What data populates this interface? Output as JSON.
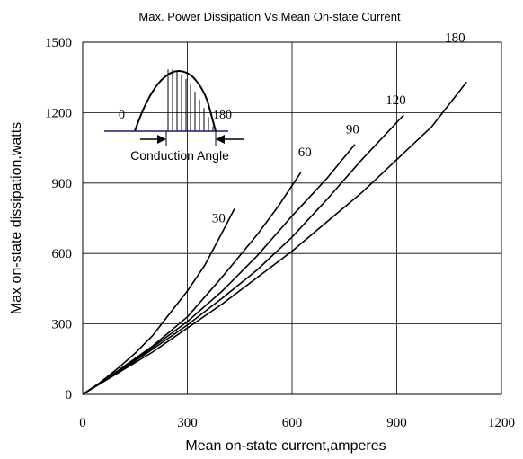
{
  "chart_data": {
    "type": "line",
    "title": "Max. Power Dissipation Vs.Mean On-state Current",
    "xlabel": "Mean on-state current,amperes",
    "ylabel": "Max on-state dissipation,watts",
    "xlim": [
      0,
      1200
    ],
    "ylim": [
      0,
      1500
    ],
    "xticks": [
      0,
      300,
      600,
      900,
      1200
    ],
    "yticks": [
      0,
      300,
      600,
      900,
      1200,
      1500
    ],
    "xtick_labels": [
      "0",
      "300",
      "600",
      "900",
      "1200"
    ],
    "ytick_labels": [
      "0",
      "300",
      "600",
      "900",
      "1200",
      "1500"
    ],
    "grid": true,
    "series": [
      {
        "name": "30",
        "x": [
          0,
          50,
          100,
          150,
          200,
          250,
          300,
          350,
          400,
          435
        ],
        "y": [
          0,
          50,
          110,
          175,
          250,
          345,
          440,
          550,
          690,
          790
        ]
      },
      {
        "name": "60",
        "x": [
          0,
          100,
          200,
          300,
          400,
          500,
          560,
          625
        ],
        "y": [
          0,
          100,
          205,
          330,
          500,
          680,
          800,
          945
        ]
      },
      {
        "name": "90",
        "x": [
          0,
          100,
          200,
          300,
          400,
          500,
          600,
          700,
          780
        ],
        "y": [
          0,
          95,
          200,
          310,
          440,
          590,
          760,
          920,
          1065
        ]
      },
      {
        "name": "120",
        "x": [
          0,
          100,
          200,
          300,
          400,
          500,
          600,
          700,
          800,
          920
        ],
        "y": [
          0,
          92,
          192,
          295,
          410,
          530,
          670,
          830,
          1000,
          1190
        ]
      },
      {
        "name": "180",
        "x": [
          0,
          200,
          400,
          600,
          800,
          1000,
          1100
        ],
        "y": [
          0,
          180,
          385,
          610,
          860,
          1140,
          1330
        ]
      }
    ]
  },
  "inset": {
    "label_start": "0",
    "label_end": "180",
    "caption": "Conduction Angle"
  }
}
